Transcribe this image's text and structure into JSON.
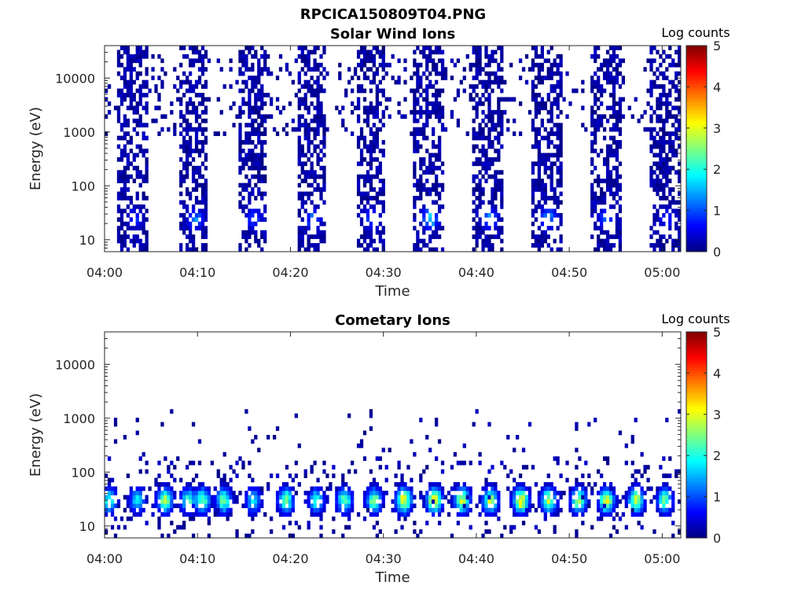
{
  "figure_title": "RPCICA150809T04.PNG",
  "colorbar": {
    "label": "Log counts",
    "min": 0,
    "max": 5,
    "ticks": [
      "0",
      "1",
      "2",
      "3",
      "4",
      "5"
    ]
  },
  "chart_data": [
    {
      "type": "heatmap",
      "title": "Solar Wind Ions",
      "xlabel": "Time",
      "ylabel": "Energy (eV)",
      "yscale": "log",
      "ylim": [
        6,
        40000
      ],
      "xlim": [
        "04:00",
        "05:02"
      ],
      "x_ticks": [
        "04:00",
        "04:10",
        "04:20",
        "04:30",
        "04:40",
        "04:50",
        "05:00"
      ],
      "y_ticks": [
        "10",
        "100",
        "1000",
        "10000"
      ],
      "color_scale": "jet",
      "color_label": "Log counts",
      "c_range": [
        0,
        5
      ],
      "scan_bursts_start_min": [
        1.5,
        8.0,
        14.3,
        20.7,
        27.0,
        33.3,
        39.7,
        46.0,
        52.3,
        58.7
      ],
      "burst_duration_min": 3.2,
      "low_energy_peak_log_counts": [
        1.0,
        1.6,
        1.2,
        1.5,
        1.3,
        2.0,
        1.5,
        1.7,
        1.4,
        1.0
      ]
    },
    {
      "type": "heatmap",
      "title": "Cometary Ions",
      "xlabel": "Time",
      "ylabel": "Energy (eV)",
      "yscale": "log",
      "ylim": [
        6,
        40000
      ],
      "xlim": [
        "04:00",
        "05:02"
      ],
      "x_ticks": [
        "04:00",
        "04:10",
        "04:20",
        "04:30",
        "04:40",
        "04:50",
        "05:00"
      ],
      "y_ticks": [
        "10",
        "100",
        "1000",
        "10000"
      ],
      "color_scale": "jet",
      "color_label": "Log counts",
      "c_range": [
        0,
        5
      ],
      "blob_centers_min": [
        0.5,
        3.5,
        6.5,
        9.0,
        10.5,
        12.8,
        16.0,
        19.5,
        22.8,
        25.8,
        29.0,
        32.2,
        35.5,
        38.5,
        41.5,
        44.8,
        47.8,
        51.0,
        54.0,
        57.2,
        60.3
      ],
      "blob_peak_log_counts": [
        2.5,
        2.0,
        3.0,
        2.4,
        2.8,
        2.7,
        2.1,
        2.8,
        2.2,
        2.6,
        2.8,
        3.5,
        3.5,
        3.3,
        3.0,
        3.6,
        3.0,
        3.0,
        3.3,
        3.2,
        2.6
      ],
      "blob_center_energy_eV": 30
    }
  ]
}
